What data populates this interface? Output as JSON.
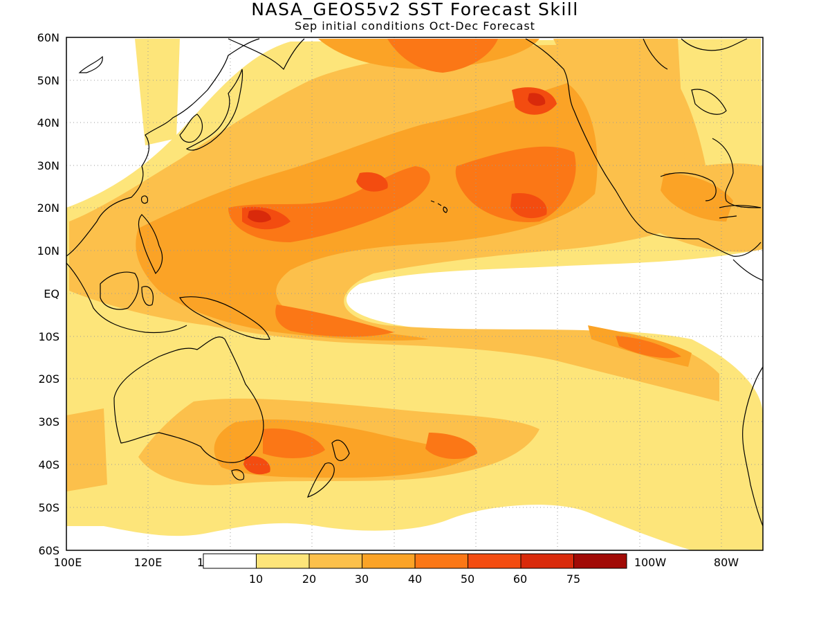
{
  "title": "NASA_GEOS5v2 SST Forecast Skill",
  "subtitle": "Sep initial conditions  Oct-Dec Forecast",
  "colors": {
    "land_outline": "#000000",
    "ocean_low": "#ffffff",
    "grid": "#9a9a9a"
  },
  "map": {
    "lon_range": [
      "100E",
      "70W"
    ],
    "lat_range": [
      "60S",
      "60N"
    ],
    "lat_labels": [
      "60N",
      "50N",
      "40N",
      "30N",
      "20N",
      "10N",
      "EQ",
      "10S",
      "20S",
      "30S",
      "40S",
      "50S",
      "60S"
    ],
    "lon_labels": [
      "100E",
      "120E",
      "1",
      "100W",
      "80W"
    ]
  },
  "colorbar": {
    "labels": [
      "10",
      "20",
      "30",
      "40",
      "50",
      "60",
      "75"
    ],
    "colors": [
      "#ffffff",
      "#fde57a",
      "#fcc04b",
      "#fba326",
      "#fb7716",
      "#f34c10",
      "#d92a0b",
      "#a10a06"
    ]
  },
  "chart_data": {
    "type": "heatmap",
    "title": "NASA_GEOS5v2 SST Forecast Skill",
    "subtitle": "Sep initial conditions  Oct-Dec Forecast",
    "xlabel": "",
    "ylabel": "",
    "x_range": [
      "100E",
      "70W"
    ],
    "y_range": [
      "60S",
      "60N"
    ],
    "levels": [
      10,
      20,
      30,
      40,
      50,
      60,
      75
    ],
    "grid": true
  }
}
